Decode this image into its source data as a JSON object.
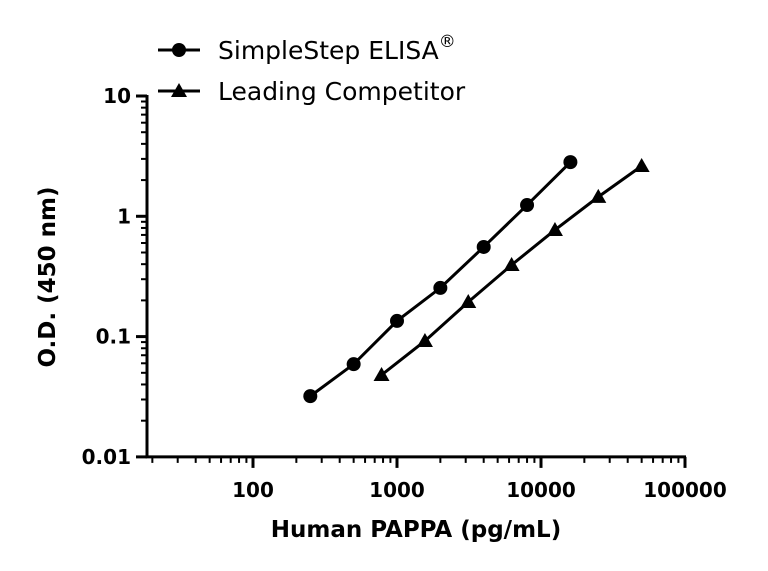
{
  "chart_data": {
    "type": "line",
    "title": "",
    "xlabel": "Human PAPPA (pg/mL)",
    "ylabel": "O.D. (450 nm)",
    "xscale": "log",
    "yscale": "log",
    "xlim": [
      18,
      100000
    ],
    "ylim": [
      0.01,
      10
    ],
    "x_ticks": [
      "100",
      "1000",
      "10000",
      "100000"
    ],
    "y_ticks": [
      "0.01",
      "0.1",
      "1",
      "10"
    ],
    "grid": false,
    "legend_position": "top-left",
    "series": [
      {
        "name": "SimpleStep ELISA®",
        "marker": "circle",
        "color": "#000000",
        "x": [
          250,
          500,
          1000,
          2000,
          4000,
          8000,
          16000
        ],
        "y": [
          0.032,
          0.059,
          0.135,
          0.254,
          0.556,
          1.24,
          2.82
        ]
      },
      {
        "name": "Leading Competitor",
        "marker": "triangle",
        "color": "#000000",
        "x": [
          781,
          1563,
          3125,
          6250,
          12500,
          25000,
          50000
        ],
        "y": [
          0.048,
          0.092,
          0.194,
          0.394,
          0.77,
          1.45,
          2.62
        ]
      }
    ]
  },
  "legend": {
    "items": [
      {
        "label": "SimpleStep ELISA",
        "superscript": "®"
      },
      {
        "label": "Leading Competitor",
        "superscript": ""
      }
    ]
  }
}
